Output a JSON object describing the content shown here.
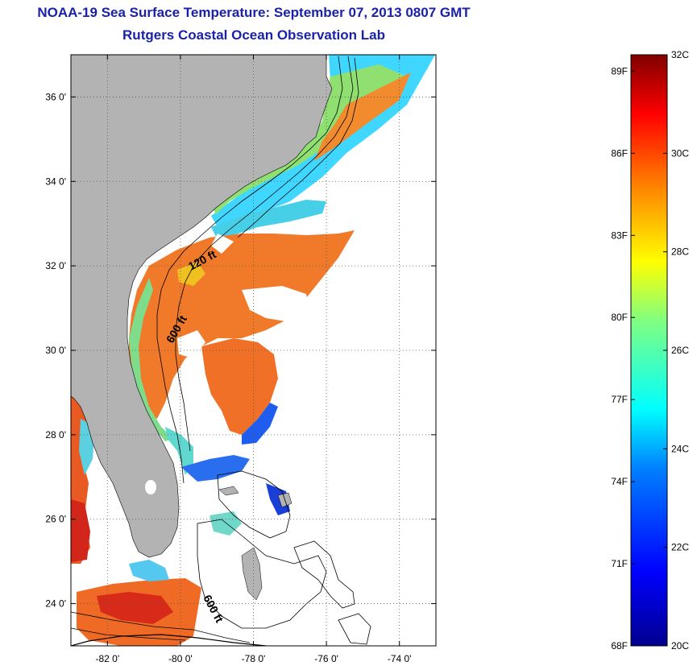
{
  "header": {
    "title_line1": "NOAA-19 Sea Surface Temperature:  September 07, 2013 0807 GMT",
    "title_line2": "Rutgers Coastal Ocean Observation Lab"
  },
  "map": {
    "lon_range": [
      -83,
      -73
    ],
    "lat_range": [
      23,
      37
    ],
    "lon_ticks": [
      {
        "value": -82,
        "label": "-82 0'"
      },
      {
        "value": -80,
        "label": "-80 0'"
      },
      {
        "value": -78,
        "label": "-78 0'"
      },
      {
        "value": -76,
        "label": "-76 0'"
      },
      {
        "value": -74,
        "label": "-74 0'"
      }
    ],
    "lat_ticks": [
      {
        "value": 24,
        "label": "24 0'"
      },
      {
        "value": 26,
        "label": "26 0'"
      },
      {
        "value": 28,
        "label": "28 0'"
      },
      {
        "value": 30,
        "label": "30 0'"
      },
      {
        "value": 32,
        "label": "32 0'"
      },
      {
        "value": 34,
        "label": "34 0'"
      },
      {
        "value": 36,
        "label": "36 0'"
      }
    ],
    "isobath_labels": [
      {
        "text": "120 ft"
      },
      {
        "text": "600 ft"
      },
      {
        "text": "600 ft"
      }
    ],
    "land_color": "#b3b3b3",
    "grid": "dotted"
  },
  "colorbar": {
    "range_c": [
      20,
      32
    ],
    "celsius_ticks": [
      {
        "value": 32,
        "label": "32C"
      },
      {
        "value": 30,
        "label": "30C"
      },
      {
        "value": 28,
        "label": "28C"
      },
      {
        "value": 26,
        "label": "26C"
      },
      {
        "value": 24,
        "label": "24C"
      },
      {
        "value": 22,
        "label": "22C"
      },
      {
        "value": 20,
        "label": "20C"
      }
    ],
    "fahrenheit_ticks": [
      {
        "value": 89,
        "label": "89F"
      },
      {
        "value": 86,
        "label": "86F"
      },
      {
        "value": 83,
        "label": "83F"
      },
      {
        "value": 80,
        "label": "80F"
      },
      {
        "value": 77,
        "label": "77F"
      },
      {
        "value": 74,
        "label": "74F"
      },
      {
        "value": 71,
        "label": "71F"
      },
      {
        "value": 68,
        "label": "68F"
      }
    ],
    "colors": [
      "#00008f",
      "#0000ff",
      "#0080ff",
      "#00ffff",
      "#80ff80",
      "#ffff00",
      "#ff8000",
      "#ff0000",
      "#800000"
    ]
  }
}
